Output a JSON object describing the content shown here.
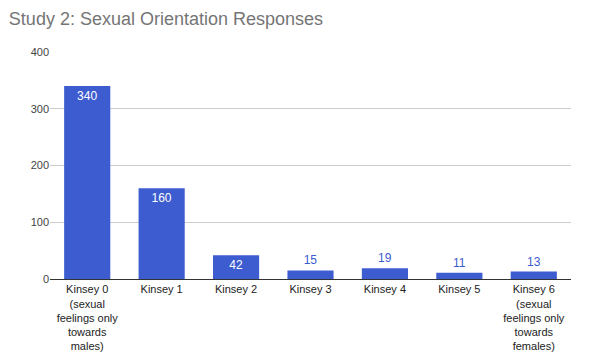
{
  "chart_data": {
    "type": "bar",
    "title": "Study 2: Sexual Orientation Responses",
    "categories": [
      "Kinsey 0 (sexual feelings only towards males)",
      "Kinsey 1",
      "Kinsey 2",
      "Kinsey 3",
      "Kinsey 4",
      "Kinsey 5",
      "Kinsey 6 (sexual feelings only towards females)"
    ],
    "values": [
      340,
      160,
      42,
      15,
      19,
      11,
      13
    ],
    "color": "#3c5ccf",
    "ylim": [
      0,
      400
    ],
    "yticks": [
      0,
      100,
      200,
      300,
      400
    ],
    "grid": true,
    "data_labels": true
  }
}
